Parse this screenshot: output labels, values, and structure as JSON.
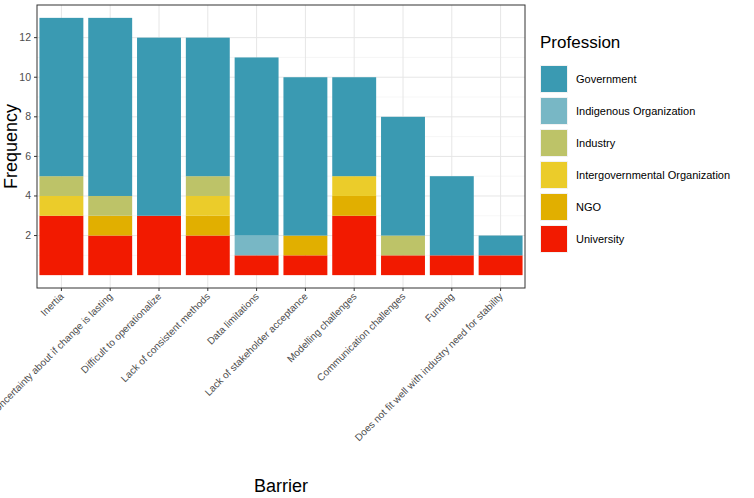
{
  "chart_data": {
    "type": "bar",
    "x_label": "Barrier",
    "y_label": "Frequency",
    "legend_title": "Profession",
    "categories": [
      "Inertia",
      "Uncertainty about if change is lasting",
      "Difficult to operationalize",
      "Lack of consistent methods",
      "Data limitations",
      "Lack of stakeholder acceptance",
      "Modelling challenges",
      "Communication challenges",
      "Funding",
      "Does not fit well with industry need for stability"
    ],
    "series": [
      {
        "name": "Government",
        "color": "#3a9ab2",
        "values": [
          8,
          9,
          9,
          7,
          9,
          8,
          5,
          6,
          4,
          1
        ]
      },
      {
        "name": "Indigenous Organization",
        "color": "#78b7c5",
        "values": [
          0,
          0,
          0,
          0,
          1,
          0,
          0,
          0,
          0,
          0
        ]
      },
      {
        "name": "Industry",
        "color": "#bdc368",
        "values": [
          1,
          1,
          0,
          1,
          0,
          0,
          0,
          1,
          0,
          0
        ]
      },
      {
        "name": "Intergovernmental Organization",
        "color": "#ebcc2a",
        "values": [
          1,
          0,
          0,
          1,
          0,
          0,
          1,
          0,
          0,
          0
        ]
      },
      {
        "name": "NGO",
        "color": "#e1af00",
        "values": [
          0,
          1,
          0,
          1,
          0,
          1,
          1,
          0,
          0,
          0
        ]
      },
      {
        "name": "University",
        "color": "#f21a00",
        "values": [
          3,
          2,
          3,
          2,
          1,
          1,
          3,
          1,
          1,
          1
        ]
      }
    ],
    "ylim": [
      -0.65,
      13.65
    ],
    "yticks": [
      2,
      4,
      6,
      8,
      10,
      12
    ],
    "stacked": true,
    "grid": true,
    "legend": "right"
  }
}
